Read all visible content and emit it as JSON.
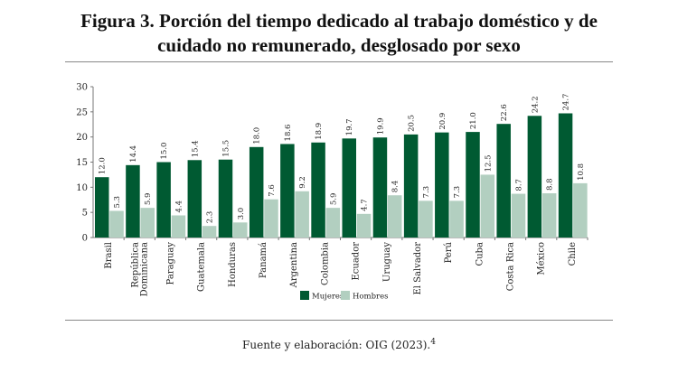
{
  "title_line1": "Figura 3. Porción del tiempo dedicado al trabajo doméstico y de",
  "title_line2": "cuidado no remunerado, desglosado por sexo",
  "source": "Fuente y elaboración: OIG (2023).",
  "source_footnote": "4",
  "chart_data": {
    "type": "bar",
    "title": "",
    "xlabel": "",
    "ylabel": "",
    "ylim": [
      0,
      30
    ],
    "yticks": [
      0,
      5,
      10,
      15,
      20,
      25,
      30
    ],
    "grid": false,
    "legend_position": "bottom",
    "categories": [
      "Brasil",
      "República Dominicana",
      "Paraguay",
      "Guatemala",
      "Honduras",
      "Panamá",
      "Argentina",
      "Colombia",
      "Ecuador",
      "Uruguay",
      "El Salvador",
      "Perú",
      "Cuba",
      "Costa Rica",
      "México",
      "Chile"
    ],
    "series": [
      {
        "name": "Mujeres",
        "color": "#005a32",
        "values": [
          12.0,
          14.4,
          15.0,
          15.4,
          15.5,
          18.0,
          18.6,
          18.9,
          19.7,
          19.9,
          20.5,
          20.9,
          21.0,
          22.6,
          24.2,
          24.7
        ]
      },
      {
        "name": "Hombres",
        "color": "#b2cfc0",
        "values": [
          5.3,
          5.9,
          4.4,
          2.3,
          3.0,
          7.6,
          9.2,
          5.9,
          4.7,
          8.4,
          7.3,
          7.3,
          12.5,
          8.7,
          8.8,
          10.8
        ]
      }
    ]
  }
}
